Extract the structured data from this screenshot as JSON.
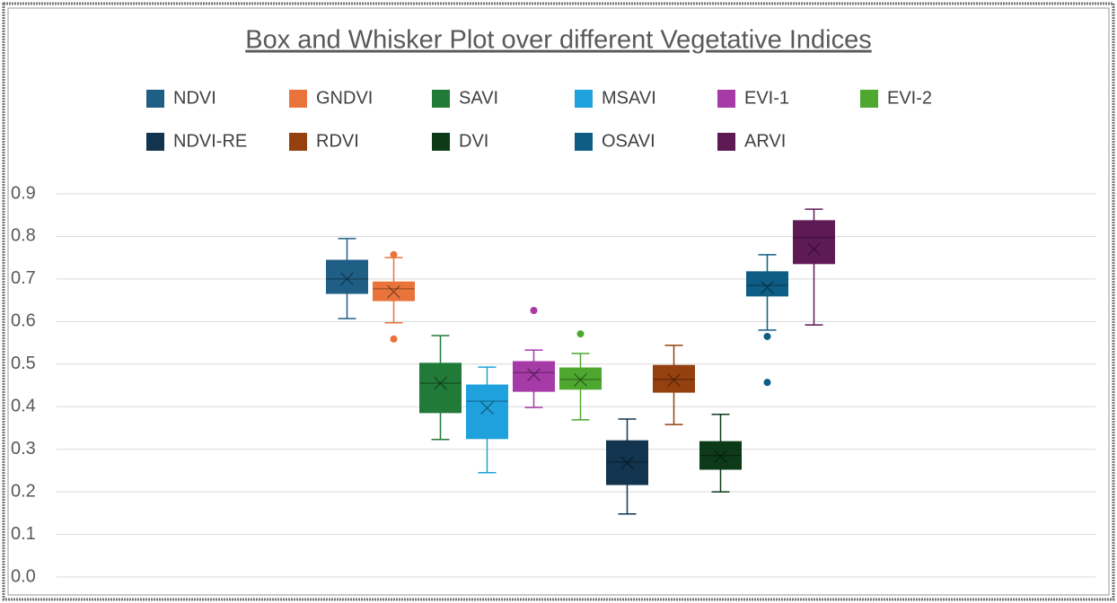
{
  "chart_data": {
    "type": "box",
    "title": "Box and Whisker Plot  over different Vegetative Indices",
    "ylim": [
      0,
      0.9
    ],
    "yticks": [
      {
        "value": 0,
        "label": "0.0"
      },
      0.1,
      0.2,
      0.3,
      0.4,
      0.5,
      0.6,
      0.7,
      0.8,
      0.9
    ],
    "grid": true,
    "legend": "top",
    "series": [
      {
        "name": "NDVI",
        "color": "#1f5f86",
        "min": 0.607,
        "q1": 0.666,
        "median": 0.7,
        "q3": 0.744,
        "max": 0.795,
        "mean": 0.7
      },
      {
        "name": "GNDVI",
        "color": "#e8743b",
        "min": 0.597,
        "q1": 0.649,
        "median": 0.677,
        "q3": 0.693,
        "max": 0.75,
        "mean": 0.67,
        "outliers": [
          0.757,
          0.559
        ]
      },
      {
        "name": "SAVI",
        "color": "#217a37",
        "min": 0.323,
        "q1": 0.386,
        "median": 0.455,
        "q3": 0.502,
        "max": 0.567,
        "mean": 0.455
      },
      {
        "name": "MSAVI",
        "color": "#1ea1dc",
        "min": 0.245,
        "q1": 0.325,
        "median": 0.413,
        "q3": 0.451,
        "max": 0.493,
        "mean": 0.397
      },
      {
        "name": "EVI-1",
        "color": "#a63ba8",
        "min": 0.398,
        "q1": 0.436,
        "median": 0.48,
        "q3": 0.506,
        "max": 0.533,
        "mean": 0.475,
        "outliers": [
          0.626
        ]
      },
      {
        "name": "EVI-2",
        "color": "#4ea72e",
        "min": 0.369,
        "q1": 0.441,
        "median": 0.464,
        "q3": 0.491,
        "max": 0.525,
        "mean": 0.463,
        "outliers": [
          0.571
        ]
      },
      {
        "name": "NDVI-RE",
        "color": "#12344e",
        "min": 0.148,
        "q1": 0.217,
        "median": 0.27,
        "q3": 0.32,
        "max": 0.371,
        "mean": 0.268
      },
      {
        "name": "RDVI",
        "color": "#94400f",
        "min": 0.358,
        "q1": 0.434,
        "median": 0.464,
        "q3": 0.497,
        "max": 0.544,
        "mean": 0.462
      },
      {
        "name": "DVI",
        "color": "#0d3a19",
        "min": 0.2,
        "q1": 0.253,
        "median": 0.285,
        "q3": 0.318,
        "max": 0.382,
        "mean": 0.283
      },
      {
        "name": "OSAVI",
        "color": "#0e5d84",
        "min": 0.58,
        "q1": 0.66,
        "median": 0.685,
        "q3": 0.717,
        "max": 0.757,
        "mean": 0.68,
        "outliers": [
          0.565,
          0.457
        ]
      },
      {
        "name": "ARVI",
        "color": "#5e1a55",
        "min": 0.592,
        "q1": 0.736,
        "median": 0.797,
        "q3": 0.837,
        "max": 0.864,
        "mean": 0.77
      }
    ]
  }
}
